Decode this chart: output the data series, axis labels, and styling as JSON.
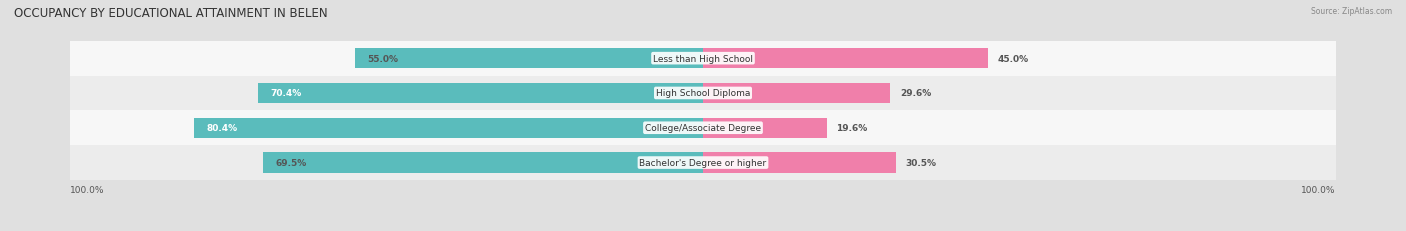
{
  "title": "OCCUPANCY BY EDUCATIONAL ATTAINMENT IN BELEN",
  "source": "Source: ZipAtlas.com",
  "categories": [
    "Less than High School",
    "High School Diploma",
    "College/Associate Degree",
    "Bachelor's Degree or higher"
  ],
  "owner_pct": [
    55.0,
    70.4,
    80.4,
    69.5
  ],
  "renter_pct": [
    45.0,
    29.6,
    19.6,
    30.5
  ],
  "owner_color": "#5abcbc",
  "renter_color": "#f07faa",
  "bg_color": "#e0e0e0",
  "row_colors": [
    "#f7f7f7",
    "#ececec"
  ],
  "title_fontsize": 8.5,
  "source_fontsize": 5.5,
  "bar_height": 0.58,
  "cat_label_fontsize": 6.5,
  "pct_label_fontsize": 6.5,
  "legend_fontsize": 7.0
}
